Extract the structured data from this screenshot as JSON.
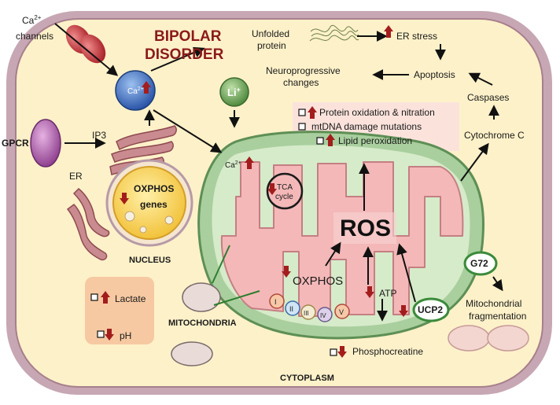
{
  "title_line1": "BIPOLAR",
  "title_line2": "DISORDER",
  "ca_channels_ion": "Ca",
  "ca_channels_charge": "2+",
  "ca_channels_word": "channels",
  "ca_bubble_ion": "Ca",
  "ca_bubble_charge": "2+",
  "li_ion": "Li",
  "li_charge": "+",
  "gpcr": "GPCR",
  "ip3": "IP3",
  "er": "ER",
  "oxphos_genes_line1": "OXPHOS",
  "oxphos_genes_line2": "genes",
  "nucleus": "NUCLEUS",
  "unfolded_line1": "Unfolded",
  "unfolded_line2": "protein",
  "er_stress": "ER stress",
  "neuro_line1": "Neuroprogressive",
  "neuro_line2": "changes",
  "apoptosis": "Apoptosis",
  "caspases": "Caspases",
  "cytochrome_c": "Cytochrome C",
  "box_items": [
    "Protein oxidation & nitration",
    "mtDNA damage mutations",
    "Lipid peroxidation"
  ],
  "mito_ca_ion": "Ca",
  "mito_ca_charge": "2+",
  "tca_line1": "TCA",
  "tca_line2": "cycle",
  "ros": "ROS",
  "oxphos": "OXPHOS",
  "complexes": [
    "I",
    "II",
    "III",
    "IV",
    "V"
  ],
  "atp": "ATP",
  "ucp2": "UCP2",
  "g72": "G72",
  "mito_frag_line1": "Mitochondrial",
  "mito_frag_line2": "fragmentation",
  "lactate": "Lactate",
  "ph": "pH",
  "mitochondria": "MITOCHONDRIA",
  "phosphocreatine": "Phosphocreatine",
  "cytoplasm": "CYTOPLASM",
  "colors": {
    "cell_fill": "#fdf1c9",
    "cell_membrane": "#b8909c",
    "title": "#8b1a1a",
    "arrow_red": "#a31d1d",
    "mito_outer": "#9ec79a",
    "mito_inner": "#f4b8b8",
    "info_box": "#fbe3dc",
    "lactate_box": "#f6c9a2",
    "ca_bubble": "#3b6cc4",
    "li_bubble": "#6aa85a",
    "ucp2_ring": "#3a8a3a"
  }
}
